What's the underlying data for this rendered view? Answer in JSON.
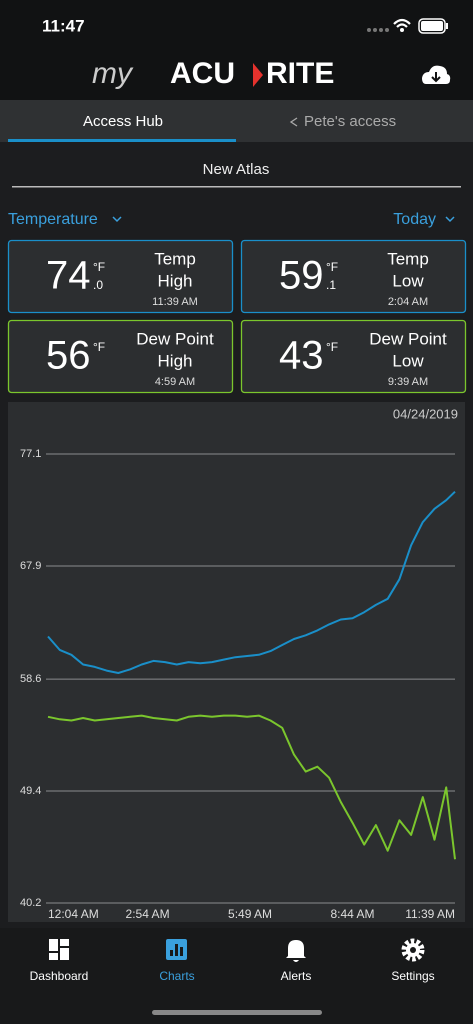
{
  "status_bar": {
    "time": "11:47"
  },
  "header": {
    "logo": [
      "my",
      "ACU",
      "RITE"
    ]
  },
  "tabs": [
    "Access Hub",
    "Pete's access"
  ],
  "station": "New Atlas",
  "metric_selector": "Temperature",
  "range_selector": "Today",
  "cards": [
    {
      "value": 74,
      "unit": "°F",
      "decimal": ".0",
      "label": [
        "Temp",
        "High"
      ],
      "time": "11:39 AM"
    },
    {
      "value": 59,
      "unit": "°F",
      "decimal": ".1",
      "label": [
        "Temp",
        "Low"
      ],
      "time": "2:04 AM"
    },
    {
      "value": 56,
      "unit": "°F",
      "label": [
        "Dew Point",
        "High"
      ],
      "time": "4:59 AM"
    },
    {
      "value": 43,
      "unit": "°F",
      "label": [
        "Dew Point",
        "Low"
      ],
      "time": "9:39 AM"
    }
  ],
  "chart_data": {
    "type": "line",
    "date": "04/24/2019",
    "x": [
      "12:04 AM",
      "12:24 AM",
      "12:44 AM",
      "1:04 AM",
      "1:24 AM",
      "1:44 AM",
      "2:04 AM",
      "2:24 AM",
      "2:44 AM",
      "3:04 AM",
      "3:24 AM",
      "3:44 AM",
      "4:04 AM",
      "4:24 AM",
      "4:44 AM",
      "5:04 AM",
      "5:24 AM",
      "5:44 AM",
      "6:04 AM",
      "6:24 AM",
      "6:44 AM",
      "7:04 AM",
      "7:24 AM",
      "7:44 AM",
      "8:04 AM",
      "8:24 AM",
      "8:44 AM",
      "9:04 AM",
      "9:24 AM",
      "9:44 AM",
      "10:04 AM",
      "10:24 AM",
      "10:44 AM",
      "11:04 AM",
      "11:24 AM",
      "11:39 AM"
    ],
    "series": [
      {
        "color": "#1a8fc9",
        "values": [
          62.1,
          61.0,
          60.6,
          59.8,
          59.6,
          59.3,
          59.1,
          59.4,
          59.8,
          60.1,
          60.0,
          59.8,
          60.0,
          59.9,
          60.0,
          60.2,
          60.4,
          60.5,
          60.6,
          60.9,
          61.4,
          61.9,
          62.2,
          62.6,
          63.1,
          63.5,
          63.6,
          64.1,
          64.7,
          65.2,
          66.8,
          69.6,
          71.5,
          72.6,
          73.3,
          74.0
        ]
      },
      {
        "color": "#7bc62d",
        "values": [
          55.5,
          55.3,
          55.2,
          55.4,
          55.2,
          55.3,
          55.4,
          55.5,
          55.6,
          55.4,
          55.3,
          55.2,
          55.5,
          55.6,
          55.5,
          55.6,
          55.6,
          55.5,
          55.6,
          55.2,
          54.6,
          52.4,
          51.0,
          51.4,
          50.5,
          48.5,
          46.8,
          45.0,
          46.6,
          44.5,
          47.0,
          45.8,
          48.9,
          45.4,
          49.7,
          43.8
        ]
      }
    ],
    "ylim": [
      40.2,
      77.1
    ],
    "yticks": [
      40.2,
      49.4,
      58.6,
      67.9,
      77.1
    ],
    "xticks": [
      "12:04 AM",
      "2:54 AM",
      "5:49 AM",
      "8:44 AM",
      "11:39 AM"
    ],
    "grid": true
  },
  "nav": [
    "Dashboard",
    "Charts",
    "Alerts",
    "Settings"
  ]
}
